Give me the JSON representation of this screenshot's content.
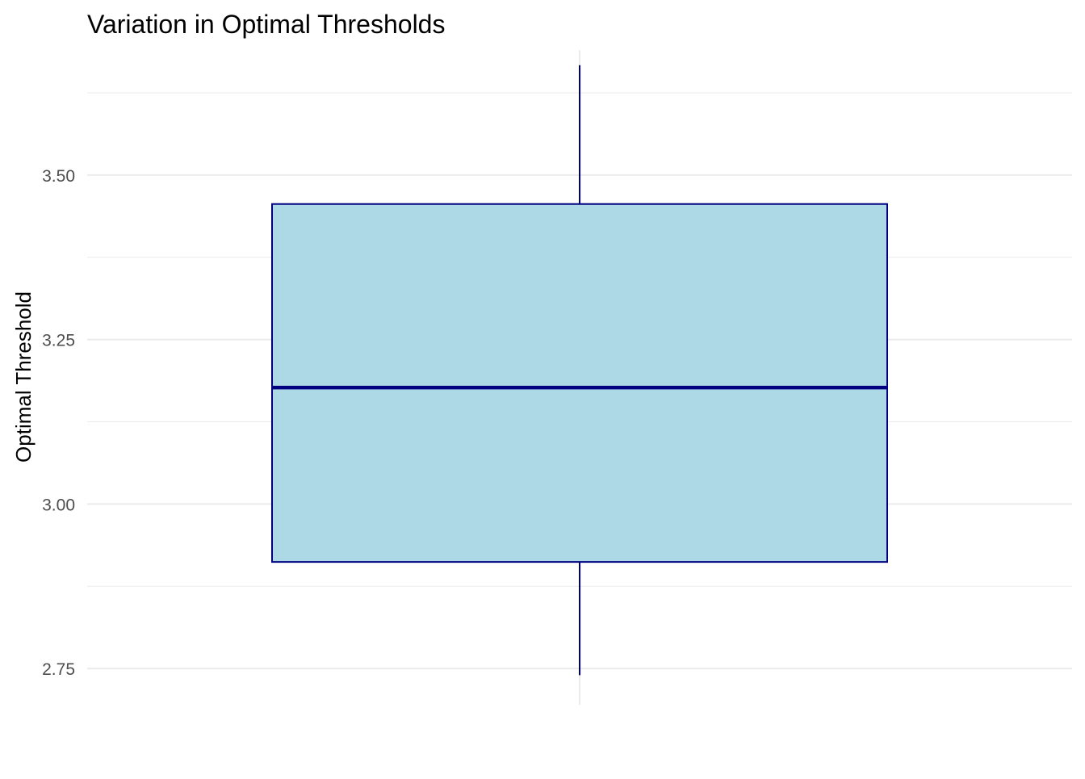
{
  "chart_data": {
    "type": "boxplot",
    "title": "Variation in Optimal Thresholds",
    "xlabel": "",
    "ylabel": "Optimal Threshold",
    "ylim": [
      2.695,
      3.69
    ],
    "y_ticks": [
      2.75,
      3.0,
      3.25,
      3.5
    ],
    "y_tick_labels": [
      "2.75",
      "3.00",
      "3.25",
      "3.50"
    ],
    "y_minor_ticks": [
      2.875,
      3.125,
      3.375,
      3.625
    ],
    "grid": true,
    "boxes": [
      {
        "min": 2.74,
        "q1": 2.912,
        "median": 3.177,
        "q3": 3.456,
        "max": 3.667
      }
    ],
    "colors": {
      "box_fill": "#add8e6",
      "box_outline": "#000080",
      "grid": "#ebebeb",
      "title": "#000000",
      "tick_label": "#4d4d4d"
    }
  }
}
